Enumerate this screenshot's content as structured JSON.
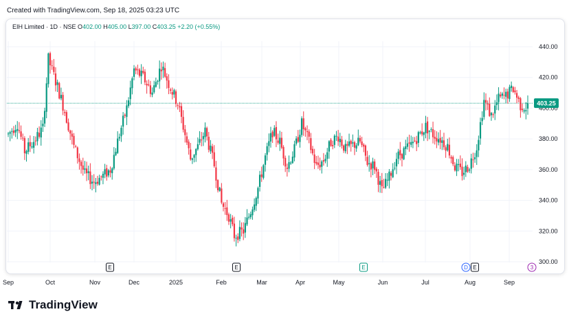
{
  "header": {
    "created_text": "Created with TradingView.com, Sep 18, 2025 03:23 UTC"
  },
  "legend": {
    "symbol": "EIH Limited · 1D · NSE",
    "o_label": "O",
    "o_value": "402.00",
    "h_label": "H",
    "h_value": "405.00",
    "l_label": "L",
    "l_value": "397.00",
    "c_label": "C",
    "c_value": "403.25",
    "change": "+2.20 (+0.55%)"
  },
  "footer": {
    "brand": "TradingView"
  },
  "colors": {
    "up": "#089981",
    "down": "#f23645",
    "price_line": "#089981",
    "text": "#131722",
    "grid": "#f0f3fa"
  },
  "chart_data": {
    "type": "candlestick",
    "y_ticks": [
      "440.00",
      "420.00",
      "400.00",
      "380.00",
      "360.00",
      "340.00",
      "320.00",
      "300.00"
    ],
    "ylim": [
      300,
      440
    ],
    "x_ticks": [
      "Sep",
      "Oct",
      "Nov",
      "Dec",
      "2025",
      "Feb",
      "Mar",
      "Apr",
      "May",
      "Jun",
      "Jul",
      "Aug",
      "Sep"
    ],
    "last_price": 403.25,
    "last_price_label": "403.25",
    "event_markers": [
      {
        "label": "E",
        "month": "Nov"
      },
      {
        "label": "E",
        "month": "Feb"
      },
      {
        "label": "E",
        "month": "May"
      },
      {
        "label": "D",
        "month": "Aug"
      },
      {
        "label": "E",
        "month": "Aug"
      },
      {
        "label": "3",
        "month": "Sep"
      }
    ],
    "trend": [
      [
        0,
        383
      ],
      [
        5,
        390
      ],
      [
        9,
        372
      ],
      [
        15,
        380
      ],
      [
        19,
        387
      ],
      [
        22,
        432
      ],
      [
        27,
        414
      ],
      [
        31,
        398
      ],
      [
        36,
        375
      ],
      [
        42,
        357
      ],
      [
        47,
        352
      ],
      [
        52,
        356
      ],
      [
        56,
        360
      ],
      [
        61,
        383
      ],
      [
        65,
        400
      ],
      [
        69,
        425
      ],
      [
        74,
        420
      ],
      [
        79,
        410
      ],
      [
        84,
        428
      ],
      [
        88,
        416
      ],
      [
        93,
        403
      ],
      [
        97,
        383
      ],
      [
        100,
        367
      ],
      [
        104,
        375
      ],
      [
        108,
        385
      ],
      [
        113,
        363
      ],
      [
        117,
        338
      ],
      [
        121,
        330
      ],
      [
        124,
        317
      ],
      [
        129,
        320
      ],
      [
        133,
        333
      ],
      [
        137,
        348
      ],
      [
        141,
        368
      ],
      [
        145,
        385
      ],
      [
        149,
        378
      ],
      [
        153,
        362
      ],
      [
        157,
        373
      ],
      [
        161,
        390
      ],
      [
        165,
        378
      ],
      [
        169,
        362
      ],
      [
        173,
        366
      ],
      [
        177,
        378
      ],
      [
        181,
        382
      ],
      [
        185,
        373
      ],
      [
        189,
        376
      ],
      [
        193,
        378
      ],
      [
        197,
        365
      ],
      [
        201,
        362
      ],
      [
        205,
        346
      ],
      [
        209,
        355
      ],
      [
        213,
        368
      ],
      [
        217,
        372
      ],
      [
        221,
        376
      ],
      [
        225,
        382
      ],
      [
        229,
        388
      ],
      [
        233,
        383
      ],
      [
        237,
        380
      ],
      [
        241,
        375
      ],
      [
        245,
        362
      ],
      [
        249,
        358
      ],
      [
        253,
        363
      ],
      [
        257,
        375
      ],
      [
        261,
        405
      ],
      [
        265,
        395
      ],
      [
        269,
        406
      ],
      [
        273,
        408
      ],
      [
        277,
        413
      ],
      [
        281,
        402
      ],
      [
        285,
        400
      ]
    ]
  }
}
